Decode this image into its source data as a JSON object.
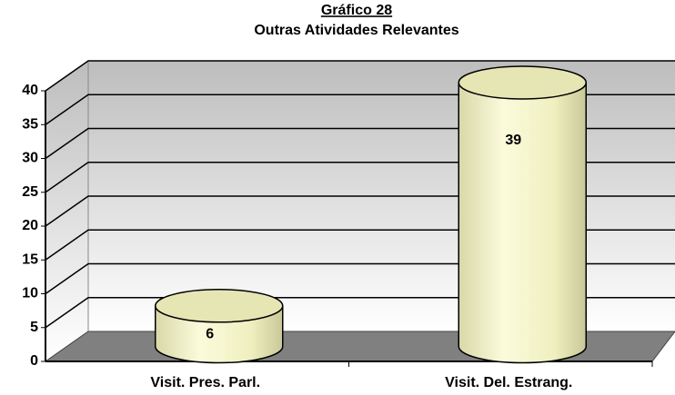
{
  "chart_data": {
    "type": "bar",
    "title": "Gráfico 28",
    "subtitle": "Outras Atividades Relevantes",
    "categories": [
      "Visit. Pres. Parl.",
      "Visit. Del. Estrang."
    ],
    "values": [
      6,
      39
    ],
    "color": "#f6f6c6",
    "ylim": [
      0,
      40
    ],
    "yticks": [
      0,
      5,
      10,
      15,
      20,
      25,
      30,
      35,
      40
    ],
    "grid": true,
    "shape": "cylinder"
  }
}
